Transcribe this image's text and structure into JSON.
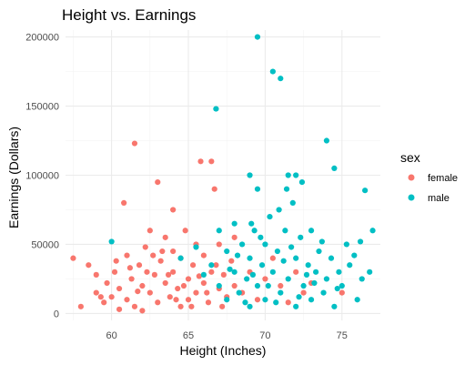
{
  "chart_data": {
    "type": "scatter",
    "title": "Height vs. Earnings",
    "xlabel": "Height (Inches)",
    "ylabel": "Earnings (Dollars)",
    "xlim": [
      57,
      77.5
    ],
    "ylim": [
      -5000,
      205000
    ],
    "x_ticks": [
      60,
      65,
      70,
      75
    ],
    "y_ticks": [
      0,
      50000,
      100000,
      150000,
      200000
    ],
    "x_tick_labels": [
      "60",
      "65",
      "70",
      "75"
    ],
    "y_tick_labels": [
      "0",
      "50000",
      "100000",
      "150000",
      "200000"
    ],
    "grid": true,
    "legend": {
      "title": "sex",
      "position": "right"
    },
    "series": [
      {
        "name": "female",
        "color": "#F8766D",
        "points": [
          [
            57.5,
            40000
          ],
          [
            58,
            5000
          ],
          [
            58.5,
            35000
          ],
          [
            59,
            15000
          ],
          [
            59,
            28000
          ],
          [
            59.5,
            8000
          ],
          [
            59.7,
            22000
          ],
          [
            60,
            12000
          ],
          [
            60.2,
            30000
          ],
          [
            60.5,
            3000
          ],
          [
            60.5,
            18000
          ],
          [
            60.8,
            80000
          ],
          [
            61,
            42000
          ],
          [
            61,
            10000
          ],
          [
            61.3,
            25000
          ],
          [
            61.5,
            123000
          ],
          [
            61.5,
            5000
          ],
          [
            61.8,
            35000
          ],
          [
            62,
            20000
          ],
          [
            62,
            2000
          ],
          [
            62.2,
            48000
          ],
          [
            62.5,
            15000
          ],
          [
            62.5,
            60000
          ],
          [
            62.8,
            28000
          ],
          [
            63,
            95000
          ],
          [
            63,
            8000
          ],
          [
            63.2,
            38000
          ],
          [
            63.5,
            22000
          ],
          [
            63.5,
            55000
          ],
          [
            63.8,
            12000
          ],
          [
            64,
            30000
          ],
          [
            64,
            45000
          ],
          [
            64,
            75000
          ],
          [
            64.3,
            18000
          ],
          [
            64.5,
            5000
          ],
          [
            64.5,
            40000
          ],
          [
            64.8,
            60000
          ],
          [
            65,
            25000
          ],
          [
            65,
            10000
          ],
          [
            65.3,
            35000
          ],
          [
            65.5,
            50000
          ],
          [
            65.5,
            15000
          ],
          [
            65.8,
            110000
          ],
          [
            66,
            22000
          ],
          [
            66,
            42000
          ],
          [
            66.3,
            8000
          ],
          [
            66.5,
            110000
          ],
          [
            66.5,
            30000
          ],
          [
            66.7,
            90000
          ],
          [
            67,
            18000
          ],
          [
            67,
            50000
          ],
          [
            67.3,
            28000
          ],
          [
            67.5,
            12000
          ],
          [
            67.8,
            38000
          ],
          [
            68,
            20000
          ],
          [
            68,
            55000
          ],
          [
            68.5,
            15000
          ],
          [
            69,
            30000
          ],
          [
            69.5,
            10000
          ],
          [
            70,
            25000
          ],
          [
            70.5,
            40000
          ],
          [
            71,
            20000
          ],
          [
            71.5,
            8000
          ],
          [
            72,
            30000
          ],
          [
            72.5,
            15000
          ],
          [
            73,
            22000
          ],
          [
            75,
            15000
          ],
          [
            62.3,
            30000
          ],
          [
            63.3,
            45000
          ],
          [
            64.2,
            10000
          ],
          [
            65.7,
            27000
          ],
          [
            66.8,
            35000
          ],
          [
            60.3,
            38000
          ],
          [
            61.7,
            16000
          ],
          [
            63.7,
            28000
          ],
          [
            64.7,
            20000
          ],
          [
            62.7,
            42000
          ],
          [
            65.2,
            5000
          ],
          [
            66.2,
            15000
          ],
          [
            67.2,
            5000
          ],
          [
            61.2,
            33000
          ],
          [
            59.3,
            12000
          ]
        ]
      },
      {
        "name": "male",
        "color": "#00BFC4",
        "points": [
          [
            60,
            52000
          ],
          [
            64.5,
            40000
          ],
          [
            65.5,
            48000
          ],
          [
            66,
            28000
          ],
          [
            66.5,
            35000
          ],
          [
            66.8,
            148000
          ],
          [
            67,
            60000
          ],
          [
            67,
            20000
          ],
          [
            67.5,
            45000
          ],
          [
            67.5,
            10000
          ],
          [
            68,
            30000
          ],
          [
            68,
            65000
          ],
          [
            68.3,
            15000
          ],
          [
            68.5,
            50000
          ],
          [
            68.8,
            25000
          ],
          [
            69,
            100000
          ],
          [
            69,
            40000
          ],
          [
            69,
            5000
          ],
          [
            69.3,
            60000
          ],
          [
            69.5,
            200000
          ],
          [
            69.5,
            90000
          ],
          [
            69.5,
            20000
          ],
          [
            69.8,
            35000
          ],
          [
            70,
            50000
          ],
          [
            70,
            10000
          ],
          [
            70.3,
            70000
          ],
          [
            70.5,
            175000
          ],
          [
            70.5,
            30000
          ],
          [
            70.8,
            45000
          ],
          [
            71,
            170000
          ],
          [
            71,
            15000
          ],
          [
            71.3,
            60000
          ],
          [
            71.5,
            100000
          ],
          [
            71.5,
            25000
          ],
          [
            71.8,
            80000
          ],
          [
            72,
            100000
          ],
          [
            72,
            40000
          ],
          [
            72,
            5000
          ],
          [
            72.3,
            55000
          ],
          [
            72.5,
            20000
          ],
          [
            72.8,
            35000
          ],
          [
            73,
            60000
          ],
          [
            73,
            10000
          ],
          [
            73.3,
            30000
          ],
          [
            73.5,
            45000
          ],
          [
            73.8,
            15000
          ],
          [
            74,
            125000
          ],
          [
            74,
            25000
          ],
          [
            74.3,
            40000
          ],
          [
            74.5,
            105000
          ],
          [
            74.5,
            5000
          ],
          [
            74.8,
            30000
          ],
          [
            75,
            20000
          ],
          [
            75.3,
            50000
          ],
          [
            75.5,
            35000
          ],
          [
            76,
            10000
          ],
          [
            76.3,
            25000
          ],
          [
            76.5,
            89000
          ],
          [
            76.8,
            30000
          ],
          [
            77,
            60000
          ],
          [
            70.2,
            20000
          ],
          [
            71.2,
            38000
          ],
          [
            72.2,
            12000
          ],
          [
            73.2,
            22000
          ],
          [
            68.2,
            42000
          ],
          [
            69.2,
            28000
          ],
          [
            70.7,
            8000
          ],
          [
            71.7,
            48000
          ],
          [
            72.7,
            28000
          ],
          [
            73.7,
            52000
          ],
          [
            74.7,
            18000
          ],
          [
            67.7,
            32000
          ],
          [
            68.7,
            8000
          ],
          [
            69.7,
            55000
          ],
          [
            75.8,
            42000
          ],
          [
            76.2,
            52000
          ],
          [
            71.4,
            90000
          ],
          [
            72.4,
            95000
          ],
          [
            69.1,
            65000
          ],
          [
            70.9,
            75000
          ]
        ]
      }
    ]
  }
}
